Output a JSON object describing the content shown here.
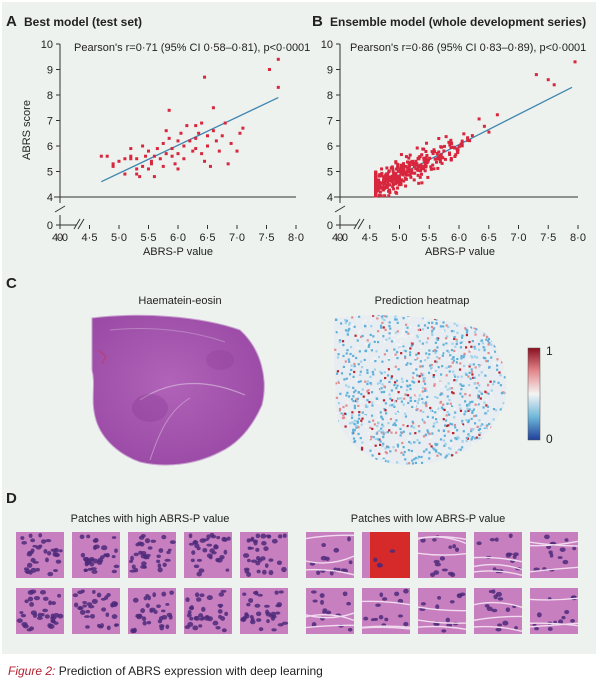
{
  "panel_labels": {
    "a": "A",
    "b": "B",
    "c": "C",
    "d": "D"
  },
  "caption": {
    "figure_label": "Figure 2:",
    "text": " Prediction of ABRS expression with deep learning"
  },
  "panel_c": {
    "left_title": "Haematein-eosin",
    "right_title": "Prediction heatmap",
    "colorbar_max": "1",
    "colorbar_min": "0"
  },
  "panel_d": {
    "high_title": "Patches with high ABRS-P value",
    "low_title": "Patches with low ABRS-P value"
  },
  "chart_data": [
    {
      "type": "scatter",
      "panel": "A",
      "title": "Best model (test set)",
      "annotation": "Pearson's r=0·71 (95% CI 0·58–0·81), p<0·0001",
      "xlabel": "ABRS-P value",
      "ylabel": "ABRS score",
      "xlim": [
        4.0,
        8.0
      ],
      "ylim": [
        4.0,
        10.0
      ],
      "x_ticks": [
        "0",
        "4·0",
        "4·5",
        "5·0",
        "5·5",
        "6·0",
        "6·5",
        "7·0",
        "7·5",
        "8·0"
      ],
      "y_ticks": [
        "0",
        "4",
        "5",
        "6",
        "7",
        "8",
        "9",
        "10"
      ],
      "axis_break": true,
      "grid": false,
      "marker_color": "#d7263d",
      "line_color": "#3f86b0",
      "fit_line": {
        "x": [
          4.7,
          7.7
        ],
        "y": [
          4.6,
          7.9
        ]
      },
      "points": [
        [
          4.7,
          5.6
        ],
        [
          4.8,
          5.6
        ],
        [
          4.9,
          5.3
        ],
        [
          4.9,
          5.2
        ],
        [
          5.0,
          5.4
        ],
        [
          5.1,
          5.5
        ],
        [
          5.2,
          5.5
        ],
        [
          5.2,
          5.6
        ],
        [
          5.3,
          5.5
        ],
        [
          5.3,
          5.1
        ],
        [
          5.3,
          4.9
        ],
        [
          5.35,
          4.8
        ],
        [
          5.4,
          6.0
        ],
        [
          5.4,
          5.2
        ],
        [
          5.45,
          5.6
        ],
        [
          5.5,
          5.1
        ],
        [
          5.5,
          5.8
        ],
        [
          5.55,
          5.4
        ],
        [
          5.6,
          5.6
        ],
        [
          5.6,
          4.8
        ],
        [
          5.65,
          5.9
        ],
        [
          5.7,
          5.5
        ],
        [
          5.75,
          5.2
        ],
        [
          5.8,
          5.7
        ],
        [
          5.8,
          6.6
        ],
        [
          5.85,
          7.4
        ],
        [
          5.85,
          6.3
        ],
        [
          5.9,
          5.9
        ],
        [
          5.9,
          5.6
        ],
        [
          5.95,
          5.3
        ],
        [
          6.0,
          6.2
        ],
        [
          6.0,
          5.7
        ],
        [
          6.05,
          6.5
        ],
        [
          6.1,
          6.0
        ],
        [
          6.1,
          5.5
        ],
        [
          6.15,
          6.8
        ],
        [
          6.2,
          6.2
        ],
        [
          6.25,
          5.8
        ],
        [
          6.3,
          6.3
        ],
        [
          6.3,
          5.9
        ],
        [
          6.35,
          6.5
        ],
        [
          6.4,
          5.7
        ],
        [
          6.4,
          6.9
        ],
        [
          6.45,
          5.4
        ],
        [
          6.5,
          6.4
        ],
        [
          6.5,
          6.0
        ],
        [
          6.55,
          5.2
        ],
        [
          6.6,
          6.6
        ],
        [
          6.6,
          7.5
        ],
        [
          6.65,
          6.2
        ],
        [
          6.7,
          5.8
        ],
        [
          6.75,
          6.4
        ],
        [
          6.8,
          6.9
        ],
        [
          6.85,
          5.3
        ],
        [
          6.9,
          6.1
        ],
        [
          7.0,
          5.8
        ],
        [
          7.05,
          6.5
        ],
        [
          7.1,
          6.7
        ],
        [
          6.45,
          8.7
        ],
        [
          7.55,
          9.0
        ],
        [
          7.7,
          9.4
        ],
        [
          7.7,
          8.3
        ],
        [
          5.2,
          5.9
        ],
        [
          5.55,
          5.3
        ],
        [
          6.3,
          6.8
        ],
        [
          5.75,
          6.1
        ],
        [
          6.0,
          5.1
        ],
        [
          5.1,
          4.9
        ]
      ]
    },
    {
      "type": "scatter",
      "panel": "B",
      "title": "Ensemble model (whole development series)",
      "annotation": "Pearson's r=0·86 (95% CI 0·83–0·89), p<0·0001",
      "xlabel": "ABRS-P value",
      "xlim": [
        4.0,
        8.0
      ],
      "ylim": [
        4.0,
        10.0
      ],
      "x_ticks": [
        "0",
        "4·0",
        "4·5",
        "5·0",
        "5·5",
        "6·0",
        "6·5",
        "7·0",
        "7·5",
        "8·0"
      ],
      "y_ticks": [
        "0",
        "4",
        "5",
        "6",
        "7",
        "8",
        "9",
        "10"
      ],
      "axis_break": true,
      "grid": false,
      "marker_color": "#d7263d",
      "line_color": "#3f86b0",
      "fit_line": {
        "x": [
          4.6,
          7.9
        ],
        "y": [
          4.4,
          8.3
        ]
      },
      "points_generated": {
        "n": 420,
        "x_range": [
          4.6,
          8.0
        ],
        "noise": 0.35
      }
    }
  ]
}
